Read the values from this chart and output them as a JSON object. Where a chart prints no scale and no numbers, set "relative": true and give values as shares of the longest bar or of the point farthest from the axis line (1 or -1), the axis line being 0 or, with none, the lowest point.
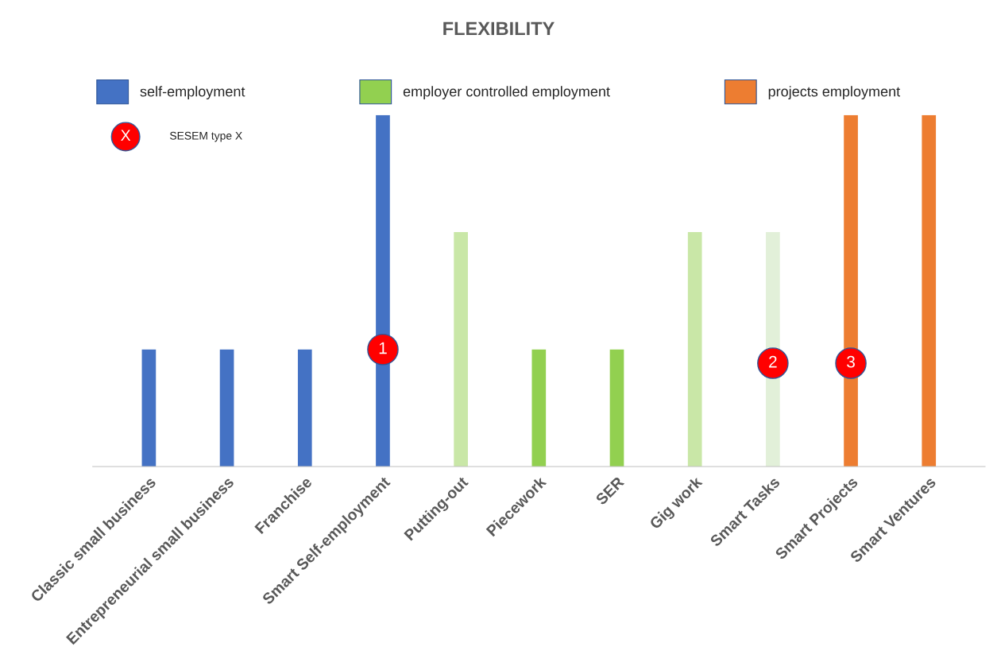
{
  "chart_data": {
    "type": "bar",
    "title": "FLEXIBILITY",
    "relative": true,
    "legend": "top",
    "grid": false,
    "categories": [
      "Classic small business",
      "Entrepreneurial small business",
      "Franchise",
      "Smart Self-employment",
      "Putting-out",
      "Piecework",
      "SER",
      "Gig work",
      "Smart Tasks",
      "Smart Projects",
      "Smart Ventures"
    ],
    "series": [
      {
        "name": "self-employment",
        "color": "#4472c4",
        "values": [
          0.333,
          0.333,
          0.333,
          1,
          null,
          null,
          null,
          null,
          null,
          null,
          null
        ]
      },
      {
        "name": "employer controlled employment",
        "color": "#92d050",
        "colors": [
          null,
          null,
          null,
          null,
          "#c9e7a7",
          "#92d050",
          "#92d050",
          "#c9e7a7",
          "#e2f0d9",
          null,
          null
        ],
        "values": [
          null,
          null,
          null,
          null,
          0.667,
          0.333,
          0.333,
          0.667,
          0.667,
          null,
          null
        ]
      },
      {
        "name": "projects employment",
        "color": "#ed7d31",
        "values": [
          null,
          null,
          null,
          null,
          null,
          null,
          null,
          null,
          null,
          1,
          1
        ]
      }
    ],
    "annotations": [
      "X",
      "SESEM type X",
      "1",
      "2",
      "3"
    ]
  }
}
